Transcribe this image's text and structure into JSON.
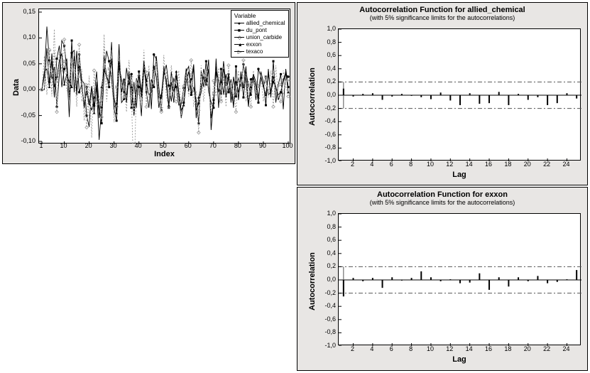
{
  "left_chart": {
    "type": "line",
    "ylabel": "Data",
    "xlabel": "Index",
    "x_ticks": [
      1,
      10,
      20,
      30,
      40,
      50,
      60,
      70,
      80,
      90,
      100
    ],
    "y_ticks": [
      -0.1,
      -0.05,
      0.0,
      0.05,
      0.1,
      0.15
    ],
    "y_tick_labels": [
      "-0,10",
      "-0,05",
      "0,00",
      "0,05",
      "0,10",
      "0,15"
    ],
    "xlim": [
      1,
      100
    ],
    "ylim": [
      -0.1,
      0.15
    ],
    "legend_title": "Variable",
    "legend": [
      {
        "label": "allied_chemical",
        "marker": "●"
      },
      {
        "label": "du_pont",
        "marker": "■"
      },
      {
        "label": "union_carbide",
        "marker": "◇"
      },
      {
        "label": "exxon",
        "marker": "▲"
      },
      {
        "label": "texaco",
        "marker": "▷"
      }
    ],
    "series_color": "#000000",
    "series_color_light": "#999999",
    "background": "#e8e6e4",
    "plot_background": "#ffffff",
    "grid_color": "#d0d0d0",
    "title_fontsize": 11,
    "label_fontsize": 11,
    "tick_fontsize": 9,
    "series": {
      "allied_chemical": [
        0.0,
        0.027,
        0.122,
        0.057,
        0.021,
        0.044,
        -0.033,
        0.028,
        0.095,
        0.085,
        0.041,
        -0.053,
        0.071,
        0.076,
        -0.011,
        0.068,
        0.018,
        0.012,
        -0.05,
        -0.072,
        0.007,
        -0.031,
        0.004,
        -0.097,
        -0.034,
        0.065,
        0.025,
        0.005,
        0.092,
        -0.034,
        -0.027,
        0.088,
        -0.025,
        -0.018,
        0.042,
        0.009,
        0.03,
        -0.046,
        0.022,
        0.005,
        -0.051,
        0.056,
        0.017,
        0.035,
        -0.0375,
        0.068,
        0.059,
        -0.015,
        -0.015,
        0.029,
        0.048,
        0.008,
        -0.023,
        0.023,
        0.005,
        -0.03,
        -0.028,
        0.003,
        0.041,
        -0.004,
        0.02,
        0.049,
        -0.04,
        -0.027,
        -0.005,
        0.04,
        0.017,
        0.058,
        -0.078,
        -0.02,
        0.045,
        0.015,
        -0.008,
        0.055,
        0.007,
        0.03,
        -0.025,
        0.025,
        -0.013,
        0.022,
        0.005,
        0.049,
        0.017,
        -0.033,
        0.02,
        0.025,
        -0.02,
        0.04,
        0.025,
        0.005,
        0.025,
        -0.01,
        -0.005,
        0.015,
        0.005,
        -0.01,
        -0.005,
        0.02,
        0.03,
        0.025
      ],
      "du_pont": [
        0.0,
        0.0,
        0.08,
        0.015,
        0.055,
        -0.015,
        0.06,
        0.085,
        0.005,
        0.04,
        0.06,
        -0.015,
        0.095,
        -0.005,
        0.075,
        -0.005,
        0.01,
        -0.035,
        0.005,
        -0.025,
        -0.04,
        -0.015,
        0.035,
        -0.035,
        -0.065,
        0.03,
        0.075,
        0.055,
        0.02,
        -0.035,
        -0.06,
        0.045,
        0.02,
        -0.005,
        -0.01,
        0.035,
        -0.035,
        0.015,
        -0.035,
        0.035,
        -0.005,
        0.055,
        -0.005,
        -0.035,
        0.02,
        0.005,
        0.065,
        0.005,
        -0.04,
        0.045,
        0.01,
        -0.035,
        0.035,
        -0.005,
        0.025,
        -0.01,
        -0.055,
        -0.025,
        0.035,
        0.045,
        -0.01,
        0.005,
        -0.02,
        -0.065,
        0.035,
        0.005,
        0.055,
        -0.005,
        -0.025,
        -0.035,
        0.06,
        -0.035,
        0.04,
        -0.01,
        0.03,
        -0.005,
        0.02,
        -0.035,
        0.045,
        -0.02,
        0.035,
        -0.015,
        0.035,
        0.008,
        -0.01,
        0.025,
        0.005,
        -0.025,
        0.035,
        0.015,
        -0.03,
        0.04,
        -0.015,
        0.055,
        -0.025,
        0.01,
        0.03,
        -0.038,
        0.04,
        0.005
      ],
      "union_carbide": [
        0.0,
        0.003,
        0.067,
        0.077,
        -0.013,
        0.117,
        -0.043,
        0.077,
        0.037,
        0.097,
        -0.003,
        0.017,
        0.057,
        0.047,
        -0.033,
        0.087,
        -0.023,
        -0.013,
        -0.073,
        0.027,
        -0.093,
        0.037,
        -0.033,
        -0.013,
        -0.053,
        0.107,
        -0.023,
        0.027,
        0.077,
        -0.063,
        -0.033,
        0.067,
        -0.013,
        0.017,
        -0.043,
        0.057,
        -0.013,
        -0.193,
        0.017,
        0.027,
        -0.023,
        0.077,
        -0.033,
        0.047,
        -0.013,
        0.037,
        0.057,
        -0.023,
        -0.043,
        0.067,
        -0.013,
        -0.033,
        0.047,
        -0.003,
        -0.023,
        0.037,
        -0.053,
        0.007,
        0.027,
        -0.013,
        0.057,
        -0.033,
        -0.003,
        -0.083,
        0.047,
        -0.023,
        0.027,
        0.037,
        -0.058,
        0.017,
        -0.013,
        0.042,
        -0.023,
        0.027,
        -0.033,
        0.047,
        -0.013,
        0.007,
        -0.043,
        0.037,
        -0.003,
        0.057,
        -0.023,
        0.017,
        -0.033,
        0.037,
        -0.013,
        0.007,
        0.027,
        -0.023,
        0.017,
        -0.003,
        0.037,
        -0.033,
        0.047,
        -0.013,
        -0.023,
        0.037,
        0.007,
        -0.013
      ],
      "exxon": [
        0.0,
        0.035,
        0.04,
        0.005,
        0.07,
        0.005,
        0.025,
        0.055,
        0.07,
        0.01,
        0.03,
        0.015,
        0.005,
        0.065,
        -0.005,
        0.045,
        0.01,
        -0.03,
        -0.005,
        -0.03,
        0.005,
        -0.045,
        0.015,
        -0.055,
        0.005,
        0.04,
        0.025,
        0.015,
        0.06,
        -0.015,
        -0.045,
        0.055,
        -0.005,
        0.02,
        -0.025,
        0.03,
        0.005,
        -0.05,
        -0.005,
        0.025,
        -0.015,
        0.04,
        0.01,
        -0.01,
        -0.005,
        0.045,
        0.025,
        -0.035,
        -0.01,
        0.035,
        0.02,
        -0.03,
        0.015,
        -0.025,
        0.035,
        -0.005,
        -0.04,
        -0.03,
        0.015,
        0.035,
        -0.005,
        0.045,
        -0.055,
        -0.015,
        0.005,
        0.025,
        0.01,
        0.04,
        -0.055,
        -0.025,
        0.035,
        -0.005,
        0.015,
        0.04,
        -0.015,
        0.025,
        -0.005,
        -0.03,
        0.015,
        -0.005,
        0.025,
        0.005,
        0.045,
        -0.025,
        0.005,
        0.03,
        0.015,
        -0.015,
        0.025,
        0.005,
        -0.01,
        0.03,
        -0.005,
        0.025,
        0.005,
        -0.02,
        -0.005,
        0.015,
        0.035,
        -0.005
      ],
      "texaco": [
        0.0,
        0.065,
        -0.01,
        0.075,
        -0.005,
        0.075,
        0.015,
        0.04,
        0.035,
        0.055,
        0.035,
        -0.02,
        0.055,
        0.055,
        0.015,
        0.025,
        0.04,
        -0.06,
        0.01,
        -0.055,
        -0.005,
        -0.01,
        -0.02,
        -0.03,
        -0.02,
        0.085,
        -0.005,
        0.04,
        0.035,
        -0.05,
        0.005,
        0.035,
        0.015,
        -0.015,
        0.01,
        0.015,
        0.025,
        -0.045,
        0.01,
        -0.0075,
        -0.035,
        0.026,
        0.035,
        -0.015,
        0.005,
        0.02,
        0.055,
        -0.01,
        -0.035,
        0.02,
        0.035,
        -0.005,
        -0.015,
        0.01,
        0.015,
        -0.02,
        -0.03,
        -0.015,
        0.035,
        0.015,
        0.03,
        -0.005,
        -0.03,
        -0.04,
        0.01,
        0.02,
        0.035,
        0.005,
        -0.045,
        -0.0075,
        0.02,
        0.025,
        -0.02,
        0.025,
        0.01,
        0.005,
        0.015,
        -0.015,
        -0.005,
        0.02,
        0.01,
        0.025,
        0.03,
        -0.02,
        0.01,
        0.015,
        -0.005,
        0.005,
        0.03,
        0.01,
        0.025,
        -0.015,
        0.015,
        0.035,
        -0.01,
        0.005,
        0.01,
        -0.01,
        0.02,
        0.018
      ]
    }
  },
  "acf_top": {
    "type": "bar",
    "title": "Autocorrelation Function for allied_chemical",
    "subtitle": "(with 5% significance limits for the autocorrelations)",
    "ylabel": "Autocorrelation",
    "xlabel": "Lag",
    "x_ticks": [
      2,
      4,
      6,
      8,
      10,
      12,
      14,
      16,
      18,
      20,
      22,
      24
    ],
    "y_ticks": [
      -1.0,
      -0.8,
      -0.6,
      -0.4,
      -0.2,
      0.0,
      0.2,
      0.4,
      0.6,
      0.8,
      1.0
    ],
    "y_tick_labels": [
      "-1,0",
      "-0,8",
      "-0,6",
      "-0,4",
      "-0,2",
      "0,0",
      "0,2",
      "0,4",
      "0,6",
      "0,8",
      "1,0"
    ],
    "xlim": [
      0.5,
      25.5
    ],
    "ylim": [
      -1.0,
      1.0
    ],
    "sig_limit": 0.2,
    "bar_color": "#000000",
    "sig_color": "#555555",
    "background": "#e8e6e4",
    "plot_background": "#ffffff",
    "values": [
      0.1,
      -0.02,
      0.02,
      0.03,
      -0.07,
      -0.02,
      0.02,
      -0.01,
      -0.03,
      -0.06,
      0.04,
      -0.08,
      -0.15,
      0.03,
      -0.13,
      -0.12,
      0.05,
      -0.15,
      0.02,
      -0.07,
      -0.03,
      -0.15,
      -0.12,
      0.03,
      -0.05
    ]
  },
  "acf_bottom": {
    "type": "bar",
    "title": "Autocorrelation Function for exxon",
    "subtitle": "(with 5% significance limits for the autocorrelations)",
    "ylabel": "Autocorrelation",
    "xlabel": "Lag",
    "x_ticks": [
      2,
      4,
      6,
      8,
      10,
      12,
      14,
      16,
      18,
      20,
      22,
      24
    ],
    "y_ticks": [
      -1.0,
      -0.8,
      -0.6,
      -0.4,
      -0.2,
      0.0,
      0.2,
      0.4,
      0.6,
      0.8,
      1.0
    ],
    "y_tick_labels": [
      "-1,0",
      "-0,8",
      "-0,6",
      "-0,4",
      "-0,2",
      "0,0",
      "0,2",
      "0,4",
      "0,6",
      "0,8",
      "1,0"
    ],
    "xlim": [
      0.5,
      25.5
    ],
    "ylim": [
      -1.0,
      1.0
    ],
    "sig_limit": 0.2,
    "bar_color": "#000000",
    "sig_color": "#555555",
    "background": "#e8e6e4",
    "plot_background": "#ffffff",
    "values": [
      -0.25,
      0.03,
      -0.02,
      0.03,
      -0.12,
      0.04,
      -0.01,
      0.03,
      0.13,
      0.04,
      -0.02,
      0.01,
      -0.05,
      -0.04,
      0.1,
      -0.15,
      0.04,
      -0.1,
      0.04,
      -0.02,
      0.06,
      -0.05,
      -0.03,
      0.01,
      0.15
    ]
  }
}
